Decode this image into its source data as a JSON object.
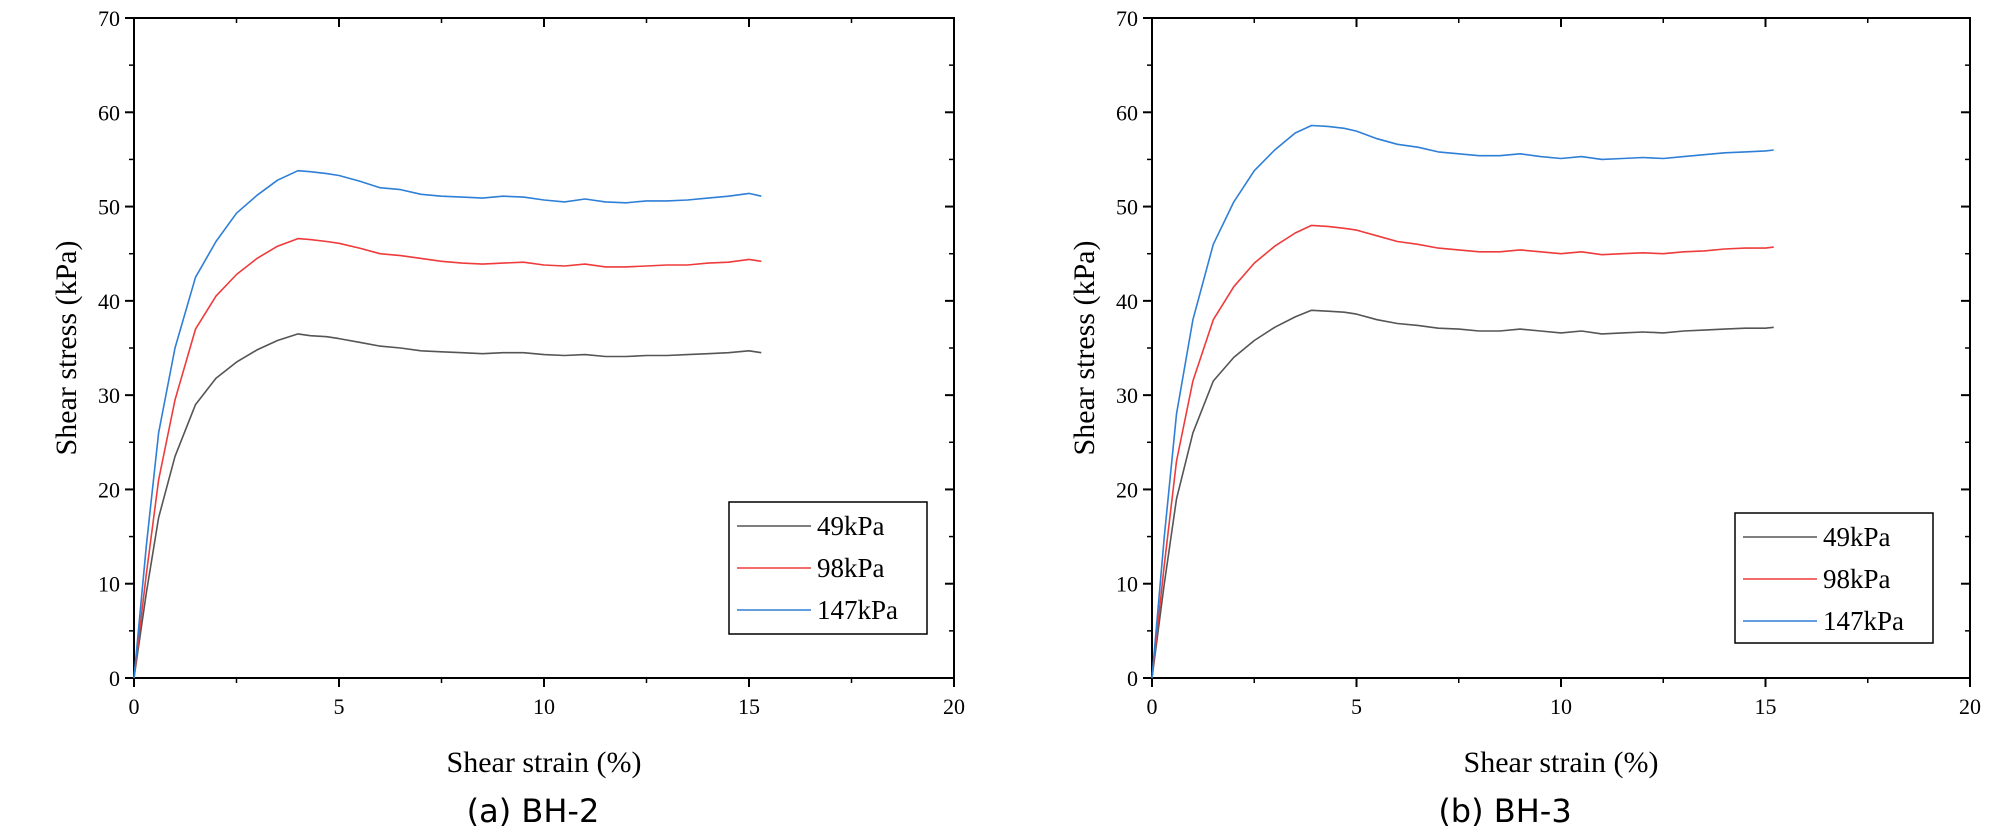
{
  "chart_data": [
    {
      "type": "line",
      "caption": "(a) BH-2",
      "xlabel": "Shear strain (%)",
      "ylabel": "Shear stress (kPa)",
      "xlim": [
        0,
        20
      ],
      "ylim": [
        0,
        70
      ],
      "xticks": [
        "0",
        "5",
        "10",
        "15",
        "20"
      ],
      "yticks": [
        "0",
        "10",
        "20",
        "30",
        "40",
        "50",
        "60",
        "70"
      ],
      "grid": false,
      "legend_position": "bottom-right",
      "series": [
        {
          "name": "49kPa",
          "color": "#555555",
          "x": [
            0,
            0.3,
            0.6,
            1.0,
            1.5,
            2.0,
            2.5,
            3.0,
            3.5,
            4.0,
            4.3,
            4.7,
            5.0,
            5.5,
            6.0,
            6.5,
            7.0,
            7.5,
            8.0,
            8.5,
            9.0,
            9.5,
            10.0,
            10.5,
            11.0,
            11.5,
            12.0,
            12.5,
            13.0,
            13.5,
            14.0,
            14.5,
            15.0,
            15.3
          ],
          "y": [
            0,
            9.0,
            17.0,
            23.5,
            29.0,
            31.8,
            33.5,
            34.8,
            35.8,
            36.5,
            36.3,
            36.2,
            36.0,
            35.6,
            35.2,
            35.0,
            34.7,
            34.6,
            34.5,
            34.4,
            34.5,
            34.5,
            34.3,
            34.2,
            34.3,
            34.1,
            34.1,
            34.2,
            34.2,
            34.3,
            34.4,
            34.5,
            34.7,
            34.5
          ]
        },
        {
          "name": "98kPa",
          "color": "#ee3b3b",
          "x": [
            0,
            0.3,
            0.6,
            1.0,
            1.5,
            2.0,
            2.5,
            3.0,
            3.5,
            4.0,
            4.3,
            4.7,
            5.0,
            5.5,
            6.0,
            6.5,
            7.0,
            7.5,
            8.0,
            8.5,
            9.0,
            9.5,
            10.0,
            10.5,
            11.0,
            11.5,
            12.0,
            12.5,
            13.0,
            13.5,
            14.0,
            14.5,
            15.0,
            15.3
          ],
          "y": [
            0,
            11.0,
            21.0,
            29.5,
            37.0,
            40.5,
            42.8,
            44.5,
            45.8,
            46.6,
            46.5,
            46.3,
            46.1,
            45.6,
            45.0,
            44.8,
            44.5,
            44.2,
            44.0,
            43.9,
            44.0,
            44.1,
            43.8,
            43.7,
            43.9,
            43.6,
            43.6,
            43.7,
            43.8,
            43.8,
            44.0,
            44.1,
            44.4,
            44.2
          ]
        },
        {
          "name": "147kPa",
          "color": "#2e7fd6",
          "x": [
            0,
            0.3,
            0.6,
            1.0,
            1.5,
            2.0,
            2.5,
            3.0,
            3.5,
            4.0,
            4.3,
            4.7,
            5.0,
            5.5,
            6.0,
            6.5,
            7.0,
            7.5,
            8.0,
            8.5,
            9.0,
            9.5,
            10.0,
            10.5,
            11.0,
            11.5,
            12.0,
            12.5,
            13.0,
            13.5,
            14.0,
            14.5,
            15.0,
            15.3
          ],
          "y": [
            0,
            14.0,
            26.0,
            35.0,
            42.5,
            46.3,
            49.3,
            51.2,
            52.8,
            53.8,
            53.7,
            53.5,
            53.3,
            52.7,
            52.0,
            51.8,
            51.3,
            51.1,
            51.0,
            50.9,
            51.1,
            51.0,
            50.7,
            50.5,
            50.8,
            50.5,
            50.4,
            50.6,
            50.6,
            50.7,
            50.9,
            51.1,
            51.4,
            51.1
          ]
        }
      ]
    },
    {
      "type": "line",
      "caption": "(b) BH-3",
      "xlabel": "Shear strain (%)",
      "ylabel": "Shear stress (kPa)",
      "xlim": [
        0,
        20
      ],
      "ylim": [
        0,
        70
      ],
      "xticks": [
        "0",
        "5",
        "10",
        "15",
        "20"
      ],
      "yticks": [
        "0",
        "10",
        "20",
        "30",
        "40",
        "50",
        "60",
        "70"
      ],
      "grid": false,
      "legend_position": "bottom-right",
      "series": [
        {
          "name": "49kPa",
          "color": "#555555",
          "x": [
            0,
            0.3,
            0.6,
            1.0,
            1.5,
            2.0,
            2.5,
            3.0,
            3.5,
            3.9,
            4.3,
            4.7,
            5.0,
            5.5,
            6.0,
            6.5,
            7.0,
            7.5,
            8.0,
            8.5,
            9.0,
            9.5,
            10.0,
            10.5,
            11.0,
            11.5,
            12.0,
            12.5,
            13.0,
            13.5,
            14.0,
            14.5,
            15.0,
            15.2
          ],
          "y": [
            0,
            10.0,
            19.0,
            26.0,
            31.5,
            34.0,
            35.8,
            37.2,
            38.3,
            39.0,
            38.9,
            38.8,
            38.6,
            38.0,
            37.6,
            37.4,
            37.1,
            37.0,
            36.8,
            36.8,
            37.0,
            36.8,
            36.6,
            36.8,
            36.5,
            36.6,
            36.7,
            36.6,
            36.8,
            36.9,
            37.0,
            37.1,
            37.1,
            37.2
          ]
        },
        {
          "name": "98kPa",
          "color": "#ee3b3b",
          "x": [
            0,
            0.3,
            0.6,
            1.0,
            1.5,
            2.0,
            2.5,
            3.0,
            3.5,
            3.9,
            4.3,
            4.7,
            5.0,
            5.5,
            6.0,
            6.5,
            7.0,
            7.5,
            8.0,
            8.5,
            9.0,
            9.5,
            10.0,
            10.5,
            11.0,
            11.5,
            12.0,
            12.5,
            13.0,
            13.5,
            14.0,
            14.5,
            15.0,
            15.2
          ],
          "y": [
            0,
            12.0,
            23.0,
            31.5,
            38.0,
            41.5,
            44.0,
            45.8,
            47.2,
            48.0,
            47.9,
            47.7,
            47.5,
            46.9,
            46.3,
            46.0,
            45.6,
            45.4,
            45.2,
            45.2,
            45.4,
            45.2,
            45.0,
            45.2,
            44.9,
            45.0,
            45.1,
            45.0,
            45.2,
            45.3,
            45.5,
            45.6,
            45.6,
            45.7
          ]
        },
        {
          "name": "147kPa",
          "color": "#2e7fd6",
          "x": [
            0,
            0.3,
            0.6,
            1.0,
            1.5,
            2.0,
            2.5,
            3.0,
            3.5,
            3.9,
            4.3,
            4.7,
            5.0,
            5.5,
            6.0,
            6.5,
            7.0,
            7.5,
            8.0,
            8.5,
            9.0,
            9.5,
            10.0,
            10.5,
            11.0,
            11.5,
            12.0,
            12.5,
            13.0,
            13.5,
            14.0,
            14.5,
            15.0,
            15.2
          ],
          "y": [
            0,
            15.0,
            28.0,
            38.0,
            46.0,
            50.5,
            53.8,
            56.0,
            57.8,
            58.6,
            58.5,
            58.3,
            58.0,
            57.2,
            56.6,
            56.3,
            55.8,
            55.6,
            55.4,
            55.4,
            55.6,
            55.3,
            55.1,
            55.3,
            55.0,
            55.1,
            55.2,
            55.1,
            55.3,
            55.5,
            55.7,
            55.8,
            55.9,
            56.0
          ]
        }
      ]
    }
  ]
}
